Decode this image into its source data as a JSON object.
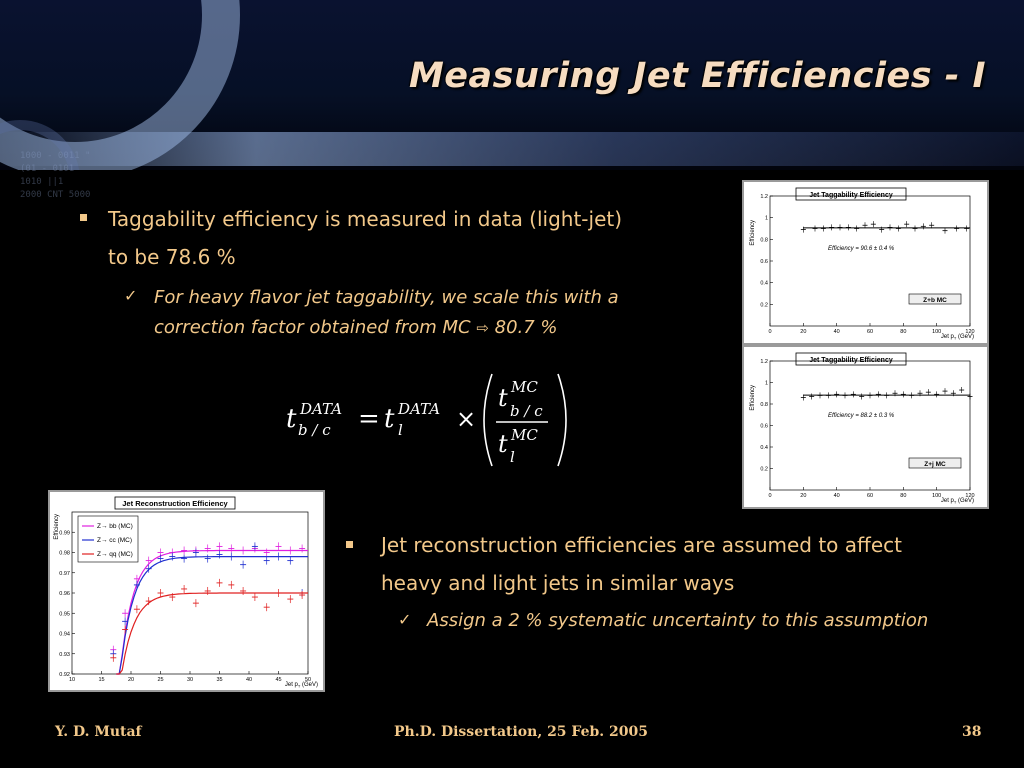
{
  "slide": {
    "title": "Measuring Jet Efficiencies - I",
    "bullet1": {
      "line1": "Taggability efficiency is measured in data (light-jet)",
      "line2": "to be 78.6 %",
      "sub_line1": "For heavy flavor jet taggability, we scale this with a",
      "sub_line2": "correction factor obtained from MC ",
      "sub_arrow": "⇨",
      "sub_value": " 80.7 %"
    },
    "bullet2": {
      "line1": "Jet reconstruction efficiencies are assumed to affect",
      "line2": "heavy and light jets in similar ways",
      "sub_line1": "Assign a 2 % systematic uncertainty to this assumption"
    },
    "background_binary": [
      "1000 - 0011 \"",
      "(01 - 0101",
      "1010 ||1",
      "2000 CNT 5000"
    ]
  },
  "formula": {
    "t": "t",
    "data": "DATA",
    "mc": "MC",
    "bc": "b / c",
    "l": "l",
    "equals": "=",
    "times": "×"
  },
  "footer": {
    "author": "Y. D. Mutaf",
    "event": "Ph.D. Dissertation, 25 Feb. 2005",
    "page": "38"
  },
  "plots": {
    "taggability_1": {
      "title": "Jet Taggability Efficiency",
      "ylabel": "Efficiency",
      "xlabel": "Jet p",
      "xlabel_sub": "T",
      "xlabel_unit": " (GeV)",
      "legend": "Z+b MC",
      "annotation": "Efficiency = 90.6 ± 0.4 %"
    },
    "taggability_2": {
      "title": "Jet Taggability Efficiency",
      "ylabel": "Efficiency",
      "xlabel": "Jet p",
      "xlabel_sub": "T",
      "xlabel_unit": " (GeV)",
      "legend": "Z+j MC",
      "annotation": "Efficiency = 88.2 ± 0.3 %"
    },
    "reconstruction": {
      "title": "Jet Reconstruction Efficiency",
      "ylabel": "Efficiency",
      "xlabel": "Jet p",
      "xlabel_sub": "T",
      "xlabel_unit": " (GeV)",
      "legend": [
        "Z→ bb (MC)",
        "Z→ cc (MC)",
        "Z→ qq (MC)"
      ]
    }
  },
  "chart_data": [
    {
      "type": "scatter",
      "title": "Jet Taggability Efficiency",
      "ylabel": "Efficiency",
      "xlabel": "Jet pT (GeV)",
      "xlim": [
        0,
        120
      ],
      "ylim": [
        0,
        1.2
      ],
      "xticks": [
        0,
        20,
        40,
        60,
        80,
        100,
        120
      ],
      "yticks": [
        0.2,
        0.4,
        0.6,
        0.8,
        1,
        1.2
      ],
      "series": [
        {
          "name": "Z+b MC",
          "x": [
            20,
            27,
            32,
            37,
            42,
            47,
            52,
            57,
            62,
            67,
            72,
            77,
            82,
            87,
            92,
            97,
            105,
            112,
            118
          ],
          "y": [
            0.89,
            0.9,
            0.9,
            0.91,
            0.91,
            0.91,
            0.9,
            0.93,
            0.94,
            0.89,
            0.91,
            0.9,
            0.94,
            0.9,
            0.92,
            0.93,
            0.88,
            0.9,
            0.9
          ]
        }
      ],
      "fit_line": 0.906
    },
    {
      "type": "scatter",
      "title": "Jet Taggability Efficiency",
      "ylabel": "Efficiency",
      "xlabel": "Jet pT (GeV)",
      "xlim": [
        0,
        120
      ],
      "ylim": [
        0,
        1.2
      ],
      "xticks": [
        0,
        20,
        40,
        60,
        80,
        100,
        120
      ],
      "yticks": [
        0.2,
        0.4,
        0.6,
        0.8,
        1,
        1.2
      ],
      "series": [
        {
          "name": "Z+j MC",
          "x": [
            20,
            25,
            30,
            35,
            40,
            45,
            50,
            55,
            60,
            65,
            70,
            75,
            80,
            85,
            90,
            95,
            100,
            105,
            110,
            115,
            120
          ],
          "y": [
            0.86,
            0.87,
            0.88,
            0.88,
            0.89,
            0.88,
            0.89,
            0.87,
            0.88,
            0.89,
            0.88,
            0.9,
            0.89,
            0.88,
            0.9,
            0.91,
            0.89,
            0.92,
            0.9,
            0.93,
            0.87
          ]
        }
      ],
      "fit_line": 0.882
    },
    {
      "type": "scatter",
      "title": "Jet Reconstruction Efficiency",
      "ylabel": "Efficiency",
      "xlabel": "Jet pT (GeV)",
      "xlim": [
        10,
        50
      ],
      "ylim": [
        0.92,
        1.0
      ],
      "xticks": [
        10,
        15,
        20,
        25,
        30,
        35,
        40,
        45,
        50
      ],
      "yticks": [
        0.92,
        0.93,
        0.94,
        0.95,
        0.96,
        0.97,
        0.98,
        0.99
      ],
      "series": [
        {
          "name": "Z→ bb (MC)",
          "color": "#e020e0",
          "x": [
            17,
            19,
            21,
            23,
            25,
            27,
            29,
            31,
            33,
            35,
            37,
            39,
            41,
            43,
            45,
            47,
            49
          ],
          "y": [
            0.932,
            0.95,
            0.967,
            0.976,
            0.98,
            0.98,
            0.981,
            0.981,
            0.982,
            0.983,
            0.982,
            0.981,
            0.982,
            0.98,
            0.983,
            0.981,
            0.982
          ],
          "fit_plateau": 0.981
        },
        {
          "name": "Z→ cc (MC)",
          "color": "#2030d0",
          "x": [
            17,
            19,
            21,
            23,
            25,
            27,
            29,
            31,
            33,
            35,
            37,
            39,
            41,
            43,
            45,
            47,
            49
          ],
          "y": [
            0.93,
            0.946,
            0.964,
            0.972,
            0.977,
            0.978,
            0.977,
            0.98,
            0.977,
            0.979,
            0.978,
            0.974,
            0.983,
            0.976,
            0.978,
            0.976,
            0.96
          ],
          "fit_plateau": 0.978
        },
        {
          "name": "Z→ qq (MC)",
          "color": "#e02020",
          "x": [
            17,
            19,
            21,
            23,
            25,
            27,
            29,
            31,
            33,
            35,
            37,
            39,
            41,
            43,
            45,
            47,
            49
          ],
          "y": [
            0.928,
            0.942,
            0.952,
            0.956,
            0.96,
            0.958,
            0.962,
            0.955,
            0.961,
            0.965,
            0.964,
            0.961,
            0.958,
            0.953,
            0.96,
            0.957,
            0.959
          ],
          "fit_plateau": 0.96
        }
      ]
    }
  ]
}
